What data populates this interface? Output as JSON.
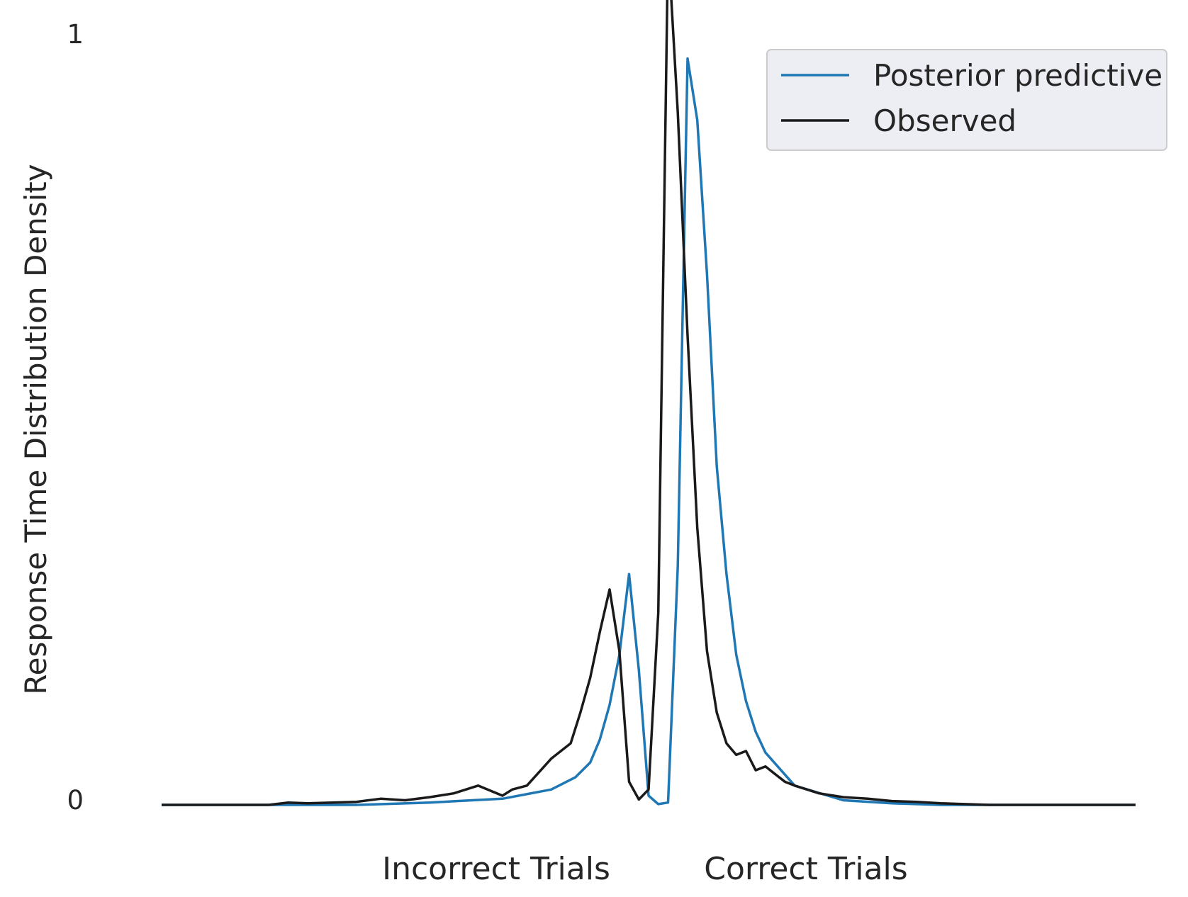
{
  "chart_data": {
    "type": "line",
    "title": "",
    "xlabel": "",
    "ylabel": "Response Time Distribution Density",
    "ylim": [
      0,
      1
    ],
    "y_ticks": [
      "0",
      "1"
    ],
    "categories": [
      "Incorrect Trials",
      "Correct Trials"
    ],
    "grid": false,
    "legend": {
      "placement": "top-right"
    },
    "x_range": [
      -1,
      1
    ],
    "series": [
      {
        "name": "Posterior predictive",
        "color": "#1f77b4",
        "x": [
          -1.0,
          -0.78,
          -0.6,
          -0.45,
          -0.3,
          -0.2,
          -0.15,
          -0.12,
          -0.1,
          -0.08,
          -0.06,
          -0.04,
          -0.02,
          0.0,
          0.02,
          0.04,
          0.06,
          0.08,
          0.1,
          0.12,
          0.14,
          0.16,
          0.18,
          0.2,
          0.22,
          0.24,
          0.3,
          0.4,
          0.5,
          0.6,
          0.8,
          1.0
        ],
        "y": [
          0.0,
          0.0,
          0.0,
          0.003,
          0.008,
          0.02,
          0.036,
          0.055,
          0.085,
          0.13,
          0.195,
          0.3,
          0.175,
          0.012,
          0.001,
          0.003,
          0.31,
          0.97,
          0.89,
          0.69,
          0.44,
          0.3,
          0.195,
          0.135,
          0.095,
          0.068,
          0.025,
          0.006,
          0.002,
          0.0,
          0.0,
          0.0
        ]
      },
      {
        "name": "Observed",
        "color": "#1a1a1a",
        "x": [
          -1.0,
          -0.78,
          -0.74,
          -0.7,
          -0.6,
          -0.55,
          -0.5,
          -0.45,
          -0.4,
          -0.35,
          -0.3,
          -0.28,
          -0.25,
          -0.2,
          -0.16,
          -0.14,
          -0.12,
          -0.1,
          -0.08,
          -0.06,
          -0.04,
          -0.02,
          0.0,
          0.02,
          0.04,
          0.06,
          0.08,
          0.1,
          0.12,
          0.14,
          0.16,
          0.18,
          0.2,
          0.22,
          0.24,
          0.26,
          0.28,
          0.3,
          0.35,
          0.4,
          0.45,
          0.5,
          0.55,
          0.6,
          0.7,
          0.8,
          1.0
        ],
        "y": [
          0.0,
          0.0,
          0.003,
          0.002,
          0.004,
          0.008,
          0.006,
          0.01,
          0.015,
          0.025,
          0.012,
          0.02,
          0.025,
          0.06,
          0.08,
          0.12,
          0.165,
          0.225,
          0.28,
          0.2,
          0.03,
          0.007,
          0.02,
          0.25,
          1.12,
          0.9,
          0.61,
          0.36,
          0.2,
          0.12,
          0.08,
          0.065,
          0.07,
          0.045,
          0.05,
          0.04,
          0.03,
          0.025,
          0.015,
          0.01,
          0.008,
          0.005,
          0.004,
          0.002,
          0.0,
          0.0,
          0.0
        ]
      }
    ]
  }
}
